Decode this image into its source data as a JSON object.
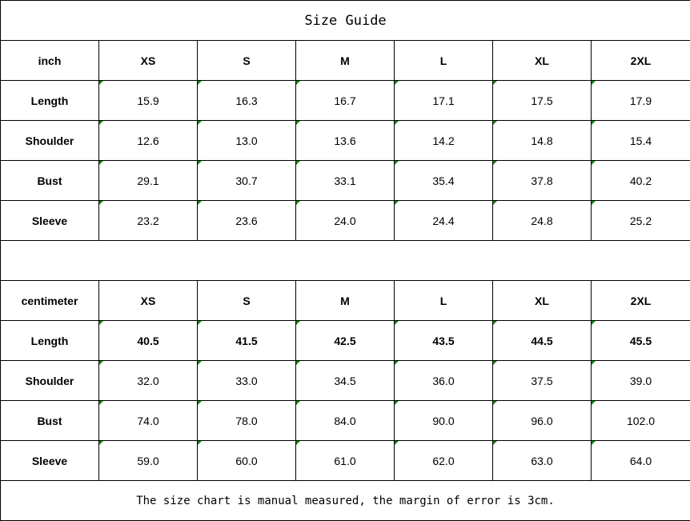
{
  "title": "Size Guide",
  "sizes": [
    "XS",
    "S",
    "M",
    "L",
    "XL",
    "2XL"
  ],
  "inch": {
    "unit_label": "inch",
    "rows": [
      {
        "label": "Length",
        "values": [
          "15.9",
          "16.3",
          "16.7",
          "17.1",
          "17.5",
          "17.9"
        ]
      },
      {
        "label": "Shoulder",
        "values": [
          "12.6",
          "13.0",
          "13.6",
          "14.2",
          "14.8",
          "15.4"
        ]
      },
      {
        "label": "Bust",
        "values": [
          "29.1",
          "30.7",
          "33.1",
          "35.4",
          "37.8",
          "40.2"
        ]
      },
      {
        "label": "Sleeve",
        "values": [
          "23.2",
          "23.6",
          "24.0",
          "24.4",
          "24.8",
          "25.2"
        ]
      }
    ]
  },
  "centimeter": {
    "unit_label": "centimeter",
    "rows": [
      {
        "label": "Length",
        "values": [
          "40.5",
          "41.5",
          "42.5",
          "43.5",
          "44.5",
          "45.5"
        ]
      },
      {
        "label": "Shoulder",
        "values": [
          "32.0",
          "33.0",
          "34.5",
          "36.0",
          "37.5",
          "39.0"
        ]
      },
      {
        "label": "Bust",
        "values": [
          "74.0",
          "78.0",
          "84.0",
          "90.0",
          "96.0",
          "102.0"
        ]
      },
      {
        "label": "Sleeve",
        "values": [
          "59.0",
          "60.0",
          "61.0",
          "62.0",
          "63.0",
          "64.0"
        ]
      }
    ]
  },
  "footer_note": "The size chart is manual measured, the margin of error is 3cm.",
  "colors": {
    "cell_marker": "#0a8a0a",
    "border": "#000000"
  }
}
